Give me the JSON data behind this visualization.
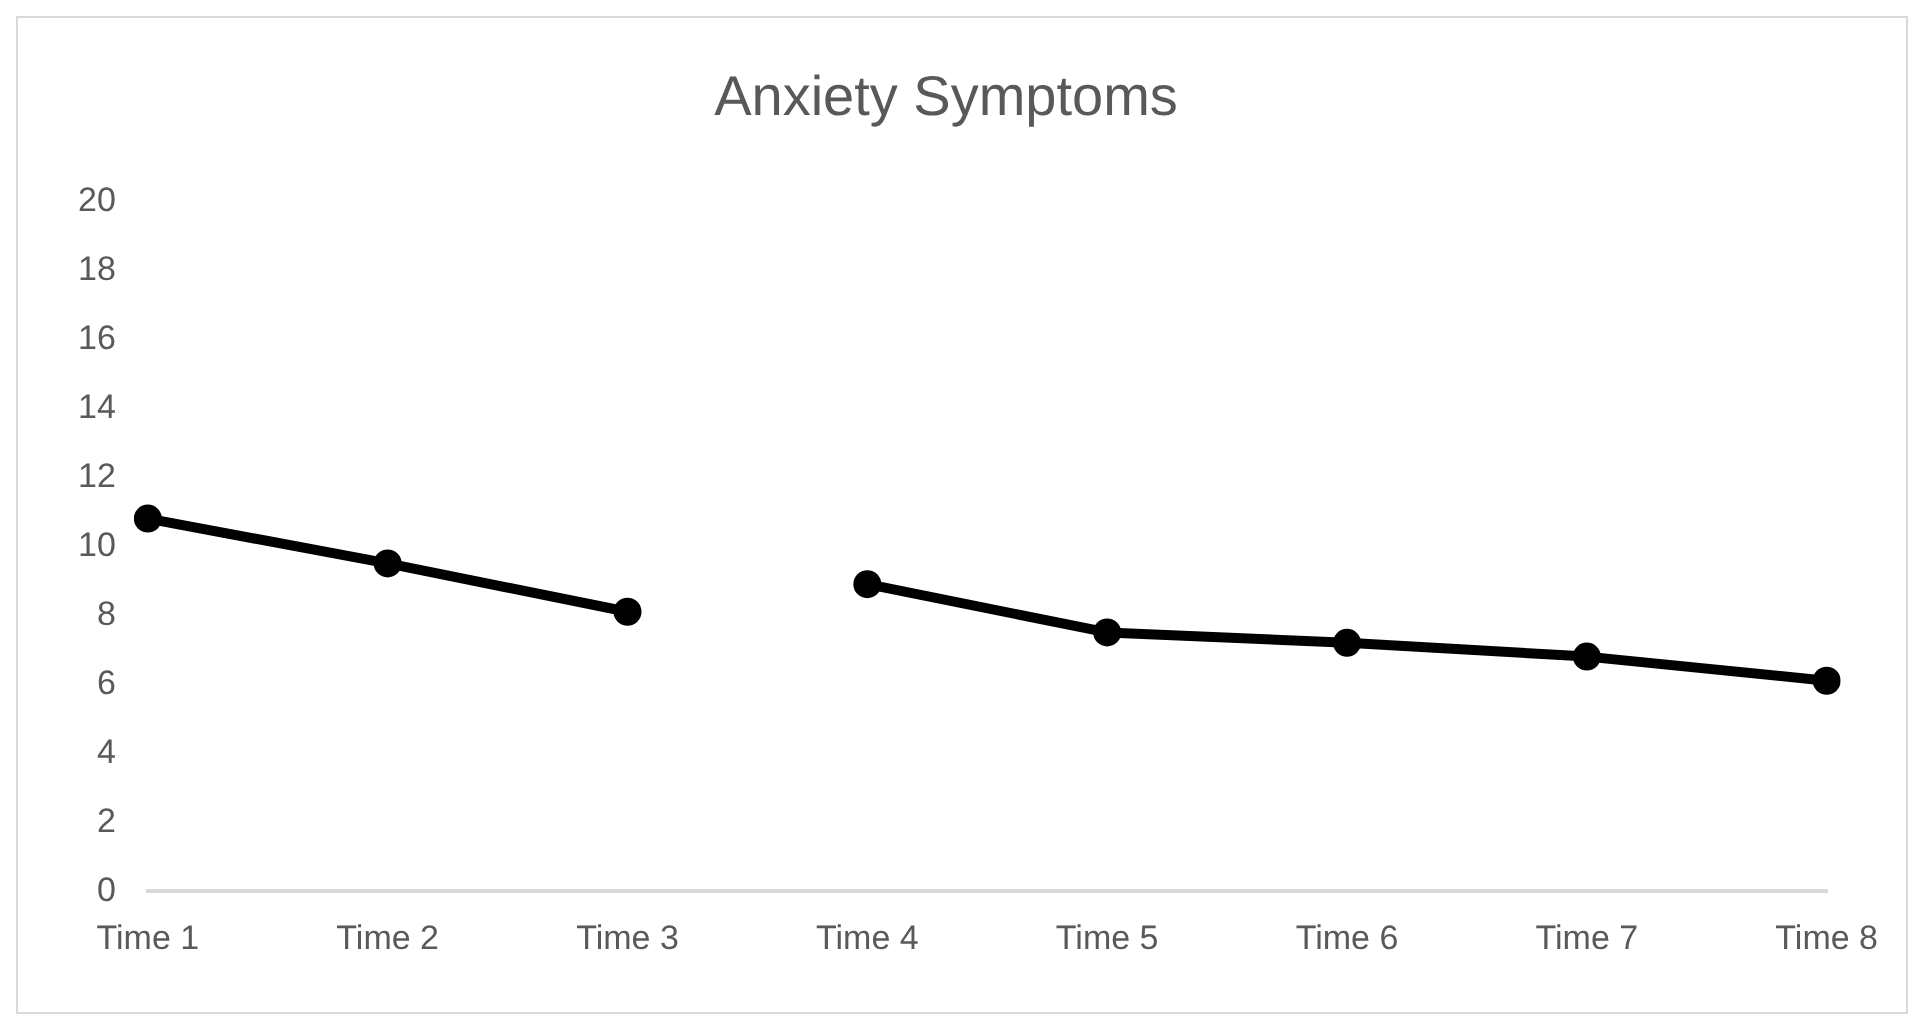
{
  "chart_data": {
    "type": "line",
    "title": "Anxiety Symptoms",
    "categories": [
      "Time 1",
      "Time 2",
      "Time 3",
      "Time 4",
      "Time 5",
      "Time 6",
      "Time 7",
      "Time 8"
    ],
    "series": [
      {
        "color": "#000000",
        "values": [
          10.8,
          9.5,
          8.1,
          null,
          null,
          null,
          null,
          null
        ]
      },
      {
        "color": "#000000",
        "values": [
          null,
          null,
          null,
          8.9,
          7.5,
          7.2,
          6.8,
          6.1
        ]
      }
    ],
    "ylim": [
      0,
      20
    ],
    "yticks": [
      0,
      2,
      4,
      6,
      8,
      10,
      12,
      14,
      16,
      18,
      20
    ],
    "grid": false,
    "legend": false,
    "marker": "circle",
    "line_style": "solid"
  }
}
